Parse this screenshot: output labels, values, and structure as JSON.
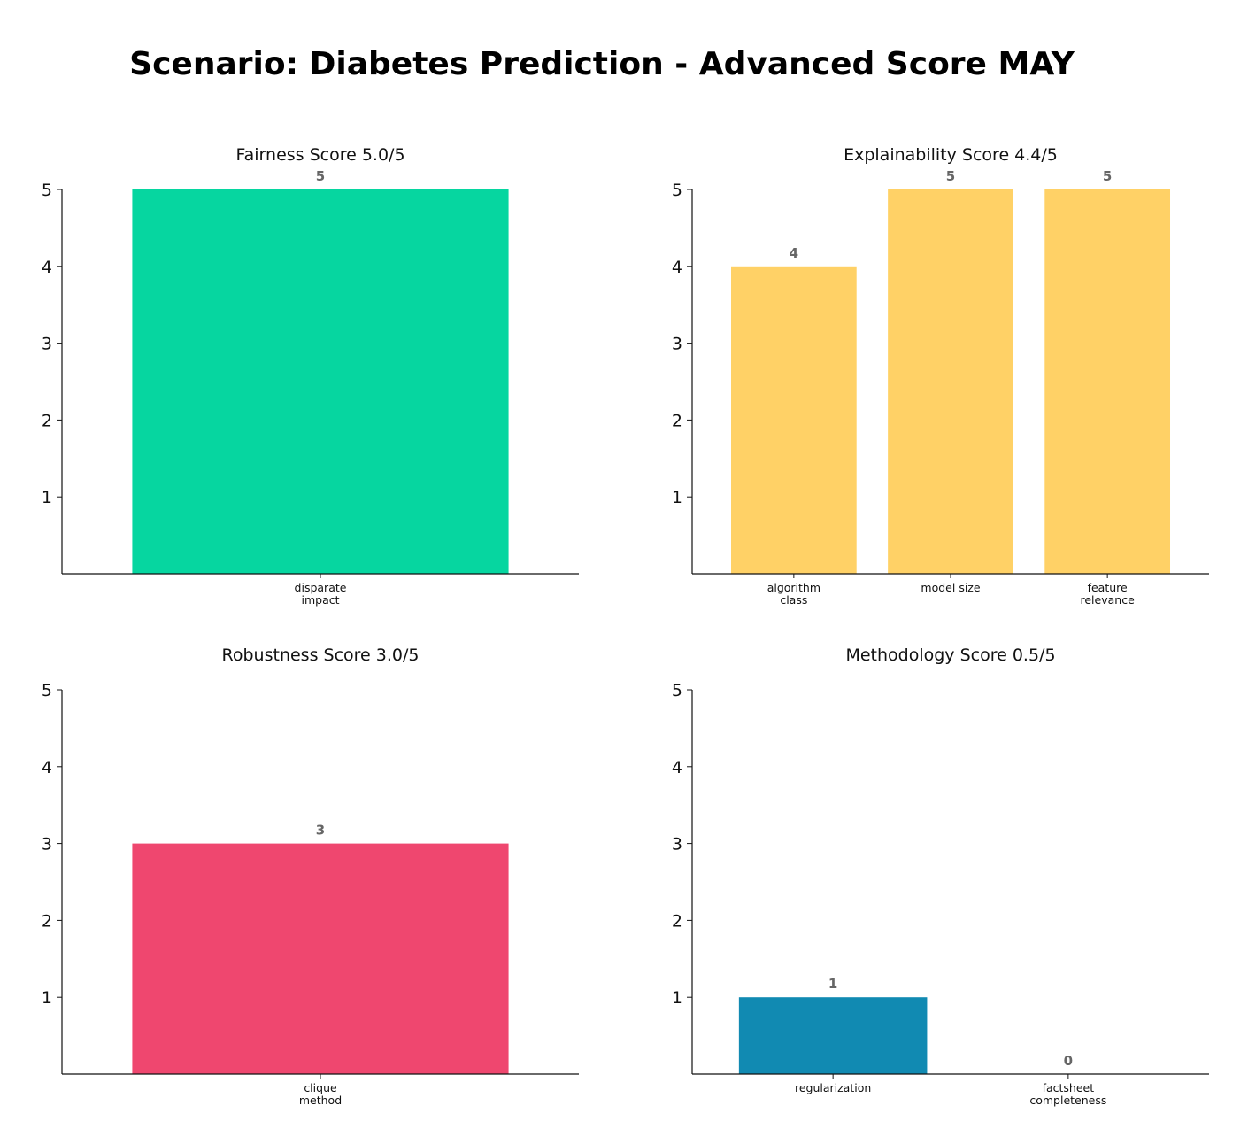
{
  "title": "Scenario: Diabetes Prediction - Advanced Score MAY",
  "chart_data": [
    {
      "type": "bar",
      "title": "Fairness Score 5.0/5",
      "categories": [
        [
          "disparate",
          "impact"
        ]
      ],
      "values": [
        5
      ],
      "data_labels": [
        "5"
      ],
      "color": "#06D6A0",
      "ylim": [
        0,
        5
      ],
      "yticks": [
        1,
        2,
        3,
        4,
        5
      ],
      "grid": false
    },
    {
      "type": "bar",
      "title": "Explainability Score 4.4/5",
      "categories": [
        [
          "algorithm",
          "class"
        ],
        [
          "model size"
        ],
        [
          "feature",
          "relevance"
        ]
      ],
      "values": [
        4,
        5,
        5
      ],
      "data_labels": [
        "4",
        "5",
        "5"
      ],
      "color": "#FFD166",
      "ylim": [
        0,
        5
      ],
      "yticks": [
        1,
        2,
        3,
        4,
        5
      ],
      "grid": false
    },
    {
      "type": "bar",
      "title": "Robustness Score 3.0/5",
      "categories": [
        [
          "clique",
          "method"
        ]
      ],
      "values": [
        3
      ],
      "data_labels": [
        "3"
      ],
      "color": "#EF476F",
      "ylim": [
        0,
        5
      ],
      "yticks": [
        1,
        2,
        3,
        4,
        5
      ],
      "grid": false
    },
    {
      "type": "bar",
      "title": "Methodology Score 0.5/5",
      "categories": [
        [
          "regularization"
        ],
        [
          "factsheet",
          "completeness"
        ]
      ],
      "values": [
        1,
        0
      ],
      "data_labels": [
        "1",
        "0"
      ],
      "color": "#118AB2",
      "ylim": [
        0,
        5
      ],
      "yticks": [
        1,
        2,
        3,
        4,
        5
      ],
      "grid": false
    }
  ]
}
